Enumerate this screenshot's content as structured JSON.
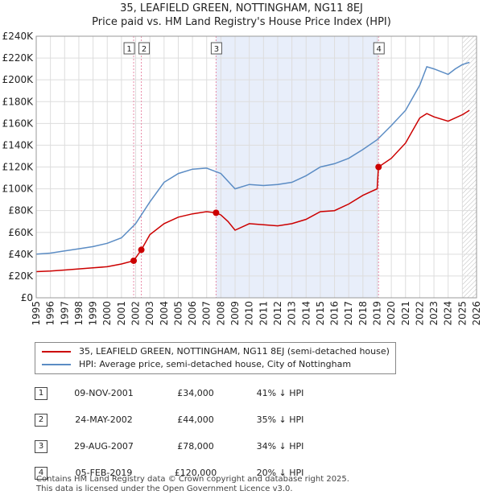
{
  "title_line1": "35, LEAFIELD GREEN, NOTTINGHAM, NG11 8EJ",
  "title_line2": "Price paid vs. HM Land Registry's House Price Index (HPI)",
  "colors": {
    "price": "#cc0000",
    "hpi": "#5b8cc4",
    "shade": "#e8eefa",
    "vline": "#e88aa8"
  },
  "chart_data": {
    "type": "line",
    "title": "Price paid vs. HM Land Registry's House Price Index (HPI)",
    "xlabel": "",
    "ylabel": "",
    "xlim": [
      1995,
      2026
    ],
    "ylim": [
      0,
      240000
    ],
    "x_ticks": [
      1995,
      1996,
      1997,
      1998,
      1999,
      2000,
      2001,
      2002,
      2003,
      2004,
      2005,
      2006,
      2007,
      2008,
      2009,
      2010,
      2011,
      2012,
      2013,
      2014,
      2015,
      2016,
      2017,
      2018,
      2019,
      2020,
      2021,
      2022,
      2023,
      2024,
      2025,
      2026
    ],
    "y_ticks": [
      0,
      20000,
      40000,
      60000,
      80000,
      100000,
      120000,
      140000,
      160000,
      180000,
      200000,
      220000,
      240000
    ],
    "y_tick_labels": [
      "£0",
      "£20K",
      "£40K",
      "£60K",
      "£80K",
      "£100K",
      "£120K",
      "£140K",
      "£160K",
      "£180K",
      "£200K",
      "£220K",
      "£240K"
    ],
    "shaded_region": [
      2007.66,
      2019.1
    ],
    "hatched_from": 2025.0,
    "series": [
      {
        "name": "35, LEAFIELD GREEN, NOTTINGHAM, NG11 8EJ (semi-detached house)",
        "color": "#cc0000",
        "x": [
          1995,
          1996,
          1997,
          1998,
          1999,
          2000,
          2001,
          2001.86,
          2002.4,
          2003,
          2004,
          2005,
          2006,
          2007,
          2007.66,
          2008,
          2008.5,
          2009,
          2010,
          2011,
          2012,
          2013,
          2014,
          2015,
          2016,
          2017,
          2018,
          2019.0,
          2019.1,
          2020,
          2021,
          2022,
          2022.5,
          2023,
          2024,
          2025,
          2025.5
        ],
        "y": [
          24000,
          24500,
          25500,
          26500,
          27500,
          28500,
          31000,
          34000,
          44000,
          58000,
          68000,
          74000,
          77000,
          79000,
          78000,
          76000,
          70000,
          62000,
          68000,
          67000,
          66000,
          68000,
          72000,
          79000,
          80000,
          86000,
          94000,
          100000,
          120000,
          128000,
          142000,
          165000,
          169000,
          166000,
          162000,
          168000,
          172000
        ]
      },
      {
        "name": "HPI: Average price, semi-detached house, City of Nottingham",
        "color": "#5b8cc4",
        "x": [
          1995,
          1996,
          1997,
          1998,
          1999,
          2000,
          2001,
          2002,
          2003,
          2004,
          2005,
          2006,
          2007,
          2008,
          2009,
          2010,
          2011,
          2012,
          2013,
          2014,
          2015,
          2016,
          2017,
          2018,
          2019,
          2020,
          2021,
          2022,
          2022.5,
          2023,
          2024,
          2024.5,
          2025,
          2025.5
        ],
        "y": [
          40000,
          41000,
          43000,
          45000,
          47000,
          50000,
          55000,
          68000,
          88000,
          106000,
          114000,
          118000,
          119000,
          114000,
          100000,
          104000,
          103000,
          104000,
          106000,
          112000,
          120000,
          123000,
          128000,
          136000,
          145000,
          158000,
          172000,
          195000,
          212000,
          210000,
          205000,
          210000,
          214000,
          216000
        ]
      }
    ],
    "sales": [
      {
        "label": "1",
        "x": 2001.86,
        "y": 34000
      },
      {
        "label": "2",
        "x": 2002.4,
        "y": 44000
      },
      {
        "label": "3",
        "x": 2007.66,
        "y": 78000
      },
      {
        "label": "4",
        "x": 2019.1,
        "y": 120000
      }
    ]
  },
  "legend": {
    "price_label": "35, LEAFIELD GREEN, NOTTINGHAM, NG11 8EJ (semi-detached house)",
    "hpi_label": "HPI: Average price, semi-detached house, City of Nottingham"
  },
  "transactions": [
    {
      "num": "1",
      "date": "09-NOV-2001",
      "price": "£34,000",
      "hpi": "41% ↓ HPI"
    },
    {
      "num": "2",
      "date": "24-MAY-2002",
      "price": "£44,000",
      "hpi": "35% ↓ HPI"
    },
    {
      "num": "3",
      "date": "29-AUG-2007",
      "price": "£78,000",
      "hpi": "34% ↓ HPI"
    },
    {
      "num": "4",
      "date": "05-FEB-2019",
      "price": "£120,000",
      "hpi": "20% ↓ HPI"
    }
  ],
  "footer": {
    "line1": "Contains HM Land Registry data © Crown copyright and database right 2025.",
    "line2": "This data is licensed under the Open Government Licence v3.0."
  }
}
